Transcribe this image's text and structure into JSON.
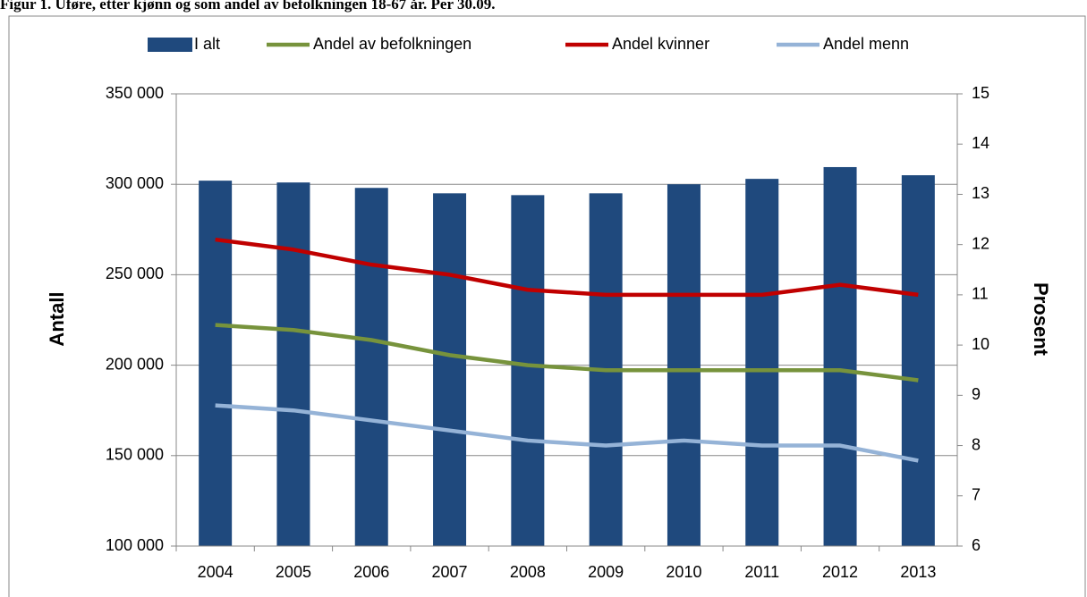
{
  "chart_data": {
    "type": "bar",
    "title": "Figur 1. Uføre, etter kjønn og som andel av befolkningen 18-67 år. Per 30.09.",
    "y_label": "Antall",
    "y2_label": "Prosent",
    "categories": [
      "2004",
      "2005",
      "2006",
      "2007",
      "2008",
      "2009",
      "2010",
      "2011",
      "2012",
      "2013"
    ],
    "series": [
      {
        "name": "I alt",
        "type": "bar",
        "color": "#1f497d",
        "values": [
          302000,
          301000,
          298000,
          295000,
          294000,
          295000,
          300000,
          303000,
          309500,
          305000
        ]
      },
      {
        "name": "Andel av befolkningen",
        "type": "line",
        "axis": "y2",
        "color": "#77933c",
        "values": [
          10.4,
          10.3,
          10.1,
          9.8,
          9.6,
          9.5,
          9.5,
          9.5,
          9.5,
          9.3
        ]
      },
      {
        "name": "Andel kvinner",
        "type": "line",
        "axis": "y2",
        "color": "#c00000",
        "values": [
          12.1,
          11.9,
          11.6,
          11.4,
          11.1,
          11.0,
          11.0,
          11.0,
          11.2,
          11.0
        ]
      },
      {
        "name": "Andel menn",
        "type": "line",
        "axis": "y2",
        "color": "#95b3d7",
        "values": [
          8.8,
          8.7,
          8.5,
          8.3,
          8.1,
          8.0,
          8.1,
          8.0,
          8.0,
          7.7
        ]
      }
    ],
    "ylim": [
      100000,
      350000
    ],
    "yticks": [
      {
        "value": 100000,
        "label": "100 000"
      },
      {
        "value": 150000,
        "label": "150 000"
      },
      {
        "value": 200000,
        "label": "200 000"
      },
      {
        "value": 250000,
        "label": "250 000"
      },
      {
        "value": 300000,
        "label": "300 000"
      },
      {
        "value": 350000,
        "label": "350 000"
      }
    ],
    "y2lim": [
      6,
      15
    ],
    "y2ticks": [
      6,
      7,
      8,
      9,
      10,
      11,
      12,
      13,
      14,
      15
    ],
    "grid": true,
    "legend": "top"
  }
}
